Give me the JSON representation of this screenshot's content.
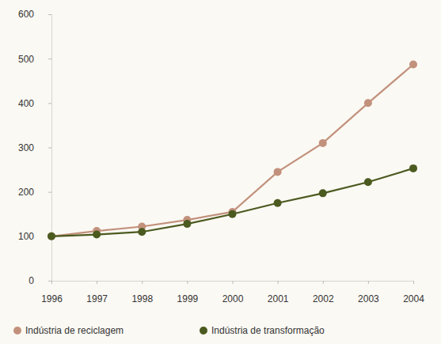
{
  "chart_data": {
    "type": "line",
    "x": [
      1996,
      1997,
      1998,
      1999,
      2000,
      2001,
      2002,
      2003,
      2004
    ],
    "series": [
      {
        "name": "Indústria de reciclagem",
        "color": "#c2917c",
        "marker": "circle",
        "values": [
          100,
          112,
          122,
          137,
          155,
          245,
          310,
          400,
          487
        ]
      },
      {
        "name": "Indústria de transformação",
        "color": "#4b5a1f",
        "marker": "circle",
        "values": [
          100,
          104,
          110,
          128,
          150,
          175,
          197,
          222,
          253
        ]
      }
    ],
    "xlim": [
      1996,
      2004
    ],
    "xticks": [
      1996,
      1997,
      1998,
      1999,
      2000,
      2001,
      2002,
      2003,
      2004
    ],
    "ylim": [
      0,
      600
    ],
    "yticks": [
      0,
      100,
      200,
      300,
      400,
      500,
      600
    ],
    "grid": false,
    "legend": "bottom"
  }
}
